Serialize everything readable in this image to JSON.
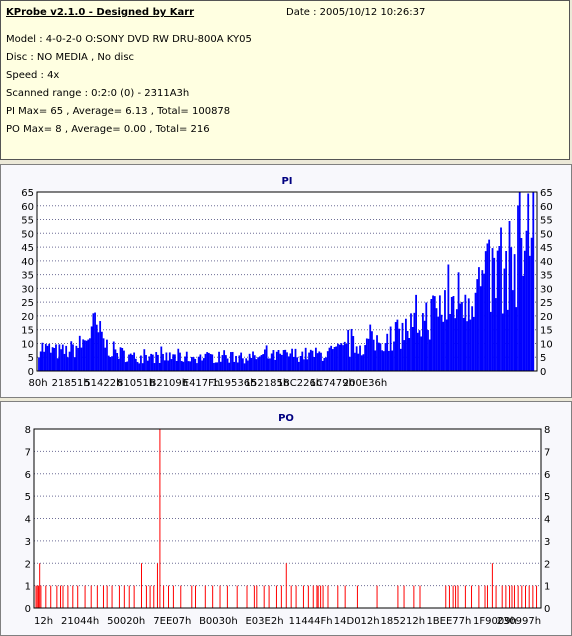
{
  "header": {
    "app_title": "KProbe v2.1.0 - Designed by Karr",
    "date": "Date : 2005/10/12 10:26:37",
    "model": "Model : 4-0-2-0 O:SONY    DVD RW DRU-800A  KY05",
    "disc": "Disc : NO MEDIA , No disc",
    "speed": "Speed : 4x",
    "scanned_range": "Scanned range : 0:2:0 (0) - 2311A3h",
    "pi_summary": "PI Max= 65 , Average= 6.13 , Total= 100878",
    "po_summary": "PO Max= 8 , Average= 0.00 , Total= 216"
  },
  "colors": {
    "pi_bar": "#0000ff",
    "po_bar": "#ff0000",
    "grid": "#6e6e96",
    "plot_bg": "#ffffff"
  },
  "chart_data": [
    {
      "type": "bar",
      "title": "PI",
      "ylim": [
        0,
        65
      ],
      "y_ticks": [
        0,
        5,
        10,
        15,
        20,
        25,
        30,
        35,
        40,
        45,
        50,
        55,
        60,
        65
      ],
      "x_tick_labels": [
        "80h",
        "21851h",
        "51422h",
        "81051h",
        "B2109h",
        "E417Fh",
        "119536h",
        "152185h",
        "18C226h",
        "1C7479h",
        "200E36h"
      ],
      "grid": true,
      "profile": [
        [
          0,
          9
        ],
        [
          4,
          8
        ],
        [
          10,
          7
        ],
        [
          16,
          7
        ],
        [
          20,
          8
        ],
        [
          26,
          10
        ],
        [
          30,
          14
        ],
        [
          33,
          16
        ],
        [
          36,
          13
        ],
        [
          40,
          9
        ],
        [
          45,
          7
        ],
        [
          55,
          5
        ],
        [
          70,
          5
        ],
        [
          90,
          5
        ],
        [
          110,
          5
        ],
        [
          130,
          5
        ],
        [
          150,
          6
        ],
        [
          165,
          6
        ],
        [
          175,
          7
        ],
        [
          185,
          9
        ],
        [
          195,
          10
        ],
        [
          210,
          13
        ],
        [
          220,
          16
        ],
        [
          230,
          20
        ],
        [
          240,
          24
        ],
        [
          250,
          28
        ],
        [
          260,
          31
        ],
        [
          270,
          35
        ],
        [
          277,
          38
        ],
        [
          283,
          42
        ],
        [
          287,
          48
        ],
        [
          290,
          52
        ],
        [
          292,
          60
        ]
      ],
      "peak_max": 65
    },
    {
      "type": "bar",
      "title": "PO",
      "ylim": [
        0,
        8
      ],
      "y_ticks_left": [
        0,
        1,
        2,
        3,
        4,
        5,
        6,
        7,
        8
      ],
      "y_ticks_right": [
        0,
        1,
        2,
        3,
        4,
        5,
        6,
        7,
        8
      ],
      "x_tick_labels": [
        "12h",
        "21044h",
        "50020h",
        "7EE07h",
        "B0030h",
        "E03E2h",
        "11444Fh",
        "14D012h",
        "185212h",
        "1BEE77h",
        "1F9009h",
        "230997h"
      ],
      "grid": true,
      "bars": [
        [
          0,
          1
        ],
        [
          1,
          1
        ],
        [
          2,
          1
        ],
        [
          3,
          2
        ],
        [
          4,
          1
        ],
        [
          8,
          1
        ],
        [
          12,
          1
        ],
        [
          17,
          1
        ],
        [
          20,
          1
        ],
        [
          22,
          1
        ],
        [
          26,
          1
        ],
        [
          30,
          1
        ],
        [
          34,
          1
        ],
        [
          40,
          1
        ],
        [
          45,
          1
        ],
        [
          50,
          1
        ],
        [
          55,
          1
        ],
        [
          58,
          1
        ],
        [
          62,
          1
        ],
        [
          68,
          1
        ],
        [
          72,
          1
        ],
        [
          76,
          1
        ],
        [
          80,
          1
        ],
        [
          86,
          2
        ],
        [
          90,
          1
        ],
        [
          93,
          1
        ],
        [
          96,
          1
        ],
        [
          99,
          2
        ],
        [
          101,
          8
        ],
        [
          104,
          1
        ],
        [
          108,
          1
        ],
        [
          112,
          1
        ],
        [
          118,
          1
        ],
        [
          127,
          1
        ],
        [
          130,
          1
        ],
        [
          138,
          1
        ],
        [
          144,
          1
        ],
        [
          150,
          1
        ],
        [
          156,
          1
        ],
        [
          164,
          1
        ],
        [
          172,
          1
        ],
        [
          178,
          1
        ],
        [
          180,
          1
        ],
        [
          186,
          1
        ],
        [
          190,
          1
        ],
        [
          196,
          1
        ],
        [
          200,
          1
        ],
        [
          204,
          2
        ],
        [
          208,
          1
        ],
        [
          212,
          1
        ],
        [
          218,
          1
        ],
        [
          222,
          1
        ],
        [
          226,
          1
        ],
        [
          229,
          1
        ],
        [
          230,
          1
        ],
        [
          232,
          1
        ],
        [
          234,
          1
        ],
        [
          238,
          1
        ],
        [
          246,
          1
        ],
        [
          252,
          1
        ],
        [
          262,
          1
        ],
        [
          278,
          1
        ],
        [
          295,
          1
        ],
        [
          300,
          1
        ],
        [
          308,
          1
        ],
        [
          313,
          1
        ],
        [
          334,
          1
        ],
        [
          337,
          1
        ],
        [
          340,
          1
        ],
        [
          342,
          1
        ],
        [
          344,
          1
        ],
        [
          350,
          1
        ],
        [
          355,
          1
        ],
        [
          361,
          1
        ],
        [
          366,
          1
        ],
        [
          368,
          1
        ],
        [
          372,
          2
        ],
        [
          375,
          1
        ],
        [
          380,
          1
        ],
        [
          383,
          1
        ],
        [
          386,
          1
        ],
        [
          388,
          1
        ],
        [
          390,
          1
        ],
        [
          393,
          1
        ],
        [
          396,
          1
        ],
        [
          399,
          1
        ],
        [
          402,
          1
        ],
        [
          405,
          1
        ],
        [
          408,
          1
        ]
      ]
    }
  ]
}
